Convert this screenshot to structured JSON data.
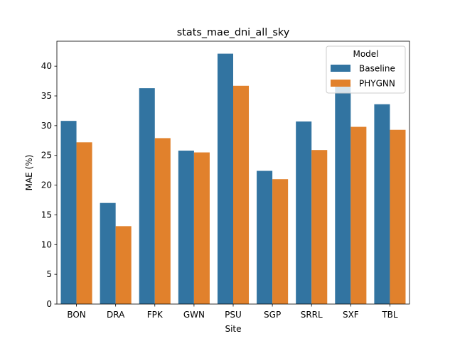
{
  "chart_data": {
    "type": "bar",
    "title": "stats_mae_dni_all_sky",
    "xlabel": "Site",
    "ylabel": "MAE (%)",
    "categories": [
      "BON",
      "DRA",
      "FPK",
      "GWN",
      "PSU",
      "SGP",
      "SRRL",
      "SXF",
      "TBL"
    ],
    "series": [
      {
        "name": "Baseline",
        "color": "#3274a1",
        "values": [
          30.8,
          17.0,
          36.3,
          25.8,
          42.1,
          22.4,
          30.7,
          37.0,
          33.6
        ]
      },
      {
        "name": "PHYGNN",
        "color": "#e1812c",
        "values": [
          27.2,
          13.1,
          27.9,
          25.5,
          36.7,
          21.0,
          25.9,
          29.8,
          29.3
        ]
      }
    ],
    "ylim": [
      0,
      44.2
    ],
    "yticks": [
      0,
      5,
      10,
      15,
      20,
      25,
      30,
      35,
      40
    ],
    "grid": false,
    "legend": {
      "title": "Model",
      "placement": "top-right"
    }
  }
}
